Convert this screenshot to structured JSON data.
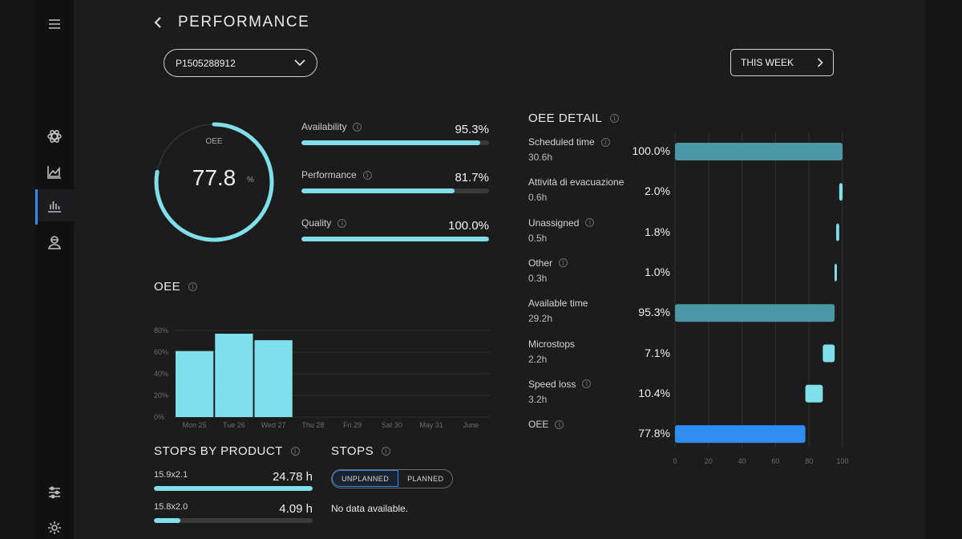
{
  "header": {
    "title": "PERFORMANCE",
    "machine": "P1505288912",
    "period": "THIS WEEK"
  },
  "sidebar": {
    "items": [
      {
        "name": "atom"
      },
      {
        "name": "area-chart"
      },
      {
        "name": "bar-chart",
        "active": true
      },
      {
        "name": "operator"
      }
    ],
    "bottom": [
      {
        "name": "sliders"
      },
      {
        "name": "settings"
      }
    ]
  },
  "summary": {
    "oee_label": "OEE",
    "oee_value": "77.8",
    "oee_unit": "%",
    "oee_fraction": 0.778,
    "metrics": [
      {
        "label": "Availability",
        "value": "95.3%",
        "fill": 95.3
      },
      {
        "label": "Performance",
        "value": "81.7%",
        "fill": 81.7
      },
      {
        "label": "Quality",
        "value": "100.0%",
        "fill": 100.0
      }
    ]
  },
  "oee_section": {
    "title": "OEE"
  },
  "chart_data": {
    "type": "bar",
    "title": "OEE",
    "categories": [
      "Mon 25",
      "Tue 26",
      "Wed 27",
      "Thu 28",
      "Fri 29",
      "Sat 30",
      "May 31",
      "June"
    ],
    "values": [
      61,
      77,
      71,
      null,
      null,
      null,
      null,
      null
    ],
    "ylim": [
      0,
      80
    ],
    "yticks": [
      "0%",
      "20%",
      "40%",
      "60%",
      "80%"
    ],
    "xlabel": "",
    "ylabel": ""
  },
  "stops_by_product": {
    "title": "STOPS BY PRODUCT",
    "items": [
      {
        "label": "15.9x2.1",
        "value": "24.78 h",
        "fill": 100
      },
      {
        "label": "15.8x2.0",
        "value": "4.09 h",
        "fill": 16.5
      }
    ]
  },
  "stops": {
    "title": "STOPS",
    "tabs": [
      {
        "label": "UNPLANNED",
        "active": true
      },
      {
        "label": "PLANNED"
      }
    ],
    "empty": "No data available."
  },
  "oee_detail": {
    "title": "OEE DETAIL",
    "xticks": [
      "0",
      "20",
      "40",
      "60",
      "80",
      "100"
    ],
    "rows": [
      {
        "label": "Scheduled time",
        "sub": "30.6h",
        "pct": "100.0%",
        "start": 0,
        "end": 100,
        "color": "#4a98a5",
        "info": true
      },
      {
        "label": "Attività di evacuazione",
        "sub": "0.6h",
        "pct": "2.0%",
        "start": 98,
        "end": 100,
        "color": "#7fe0ec",
        "info": false
      },
      {
        "label": "Unassigned",
        "sub": "0.5h",
        "pct": "1.8%",
        "start": 96.2,
        "end": 98,
        "color": "#7fe0ec",
        "info": true
      },
      {
        "label": "Other",
        "sub": "0.3h",
        "pct": "1.0%",
        "start": 95.2,
        "end": 96.2,
        "color": "#7fe0ec",
        "info": true
      },
      {
        "label": "Available time",
        "sub": "29.2h",
        "pct": "95.3%",
        "start": 0,
        "end": 95.3,
        "color": "#4a98a5",
        "info": false
      },
      {
        "label": "Microstops",
        "sub": "2.2h",
        "pct": "7.1%",
        "start": 88.2,
        "end": 95.3,
        "color": "#7fe0ec",
        "info": false
      },
      {
        "label": "Speed loss",
        "sub": "3.2h",
        "pct": "10.4%",
        "start": 77.8,
        "end": 88.2,
        "color": "#7fe0ec",
        "info": true
      },
      {
        "label": "OEE",
        "sub": "",
        "pct": "77.8%",
        "start": 0,
        "end": 77.8,
        "color": "#2f8df0",
        "info": true
      }
    ]
  }
}
